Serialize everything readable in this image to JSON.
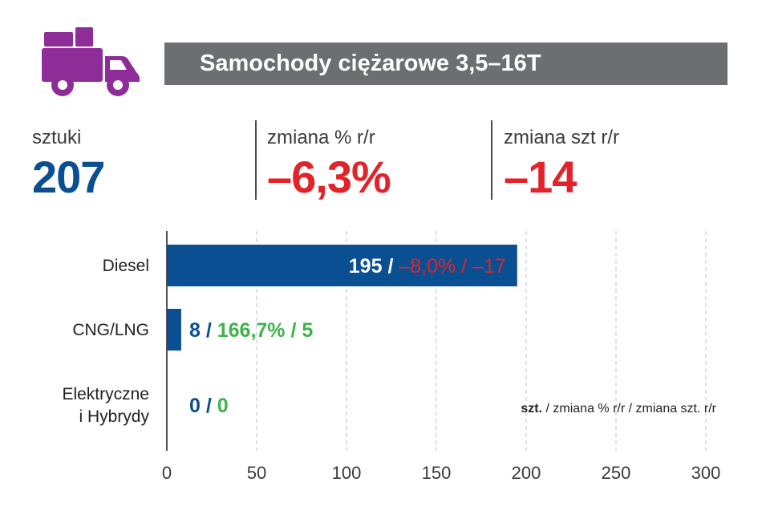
{
  "header": {
    "title": "Samochody ciężarowe 3,5–16T",
    "icon": "truck-icon",
    "icon_color": "#8e2d97"
  },
  "stats": [
    {
      "label": "sztuki",
      "value": "207",
      "color": "#0a4f92"
    },
    {
      "label": "zmiana % r/r",
      "value": "–6,3%",
      "color": "#e2232a"
    },
    {
      "label": "zmiana szt r/r",
      "value": "–14",
      "color": "#e2232a"
    }
  ],
  "chart_data": {
    "type": "bar",
    "orientation": "horizontal",
    "categories": [
      "Diesel",
      "CNG/LNG",
      "Elektryczne i Hybrydy"
    ],
    "category_lines": [
      [
        "Diesel"
      ],
      [
        "CNG/LNG"
      ],
      [
        "Elektryczne",
        "i Hybrydy"
      ]
    ],
    "values": [
      195,
      8,
      0
    ],
    "xlim": [
      0,
      300
    ],
    "x_ticks": [
      "0",
      "50",
      "100",
      "150",
      "200",
      "250",
      "300"
    ],
    "grid": true,
    "bar_color": "#0a4f92",
    "bar_labels": [
      {
        "value": "195",
        "sep": " / ",
        "pct": "–8,0%",
        "sep2": " / ",
        "diff": "–17",
        "value_color": "#ffffff",
        "change_color": "#e2232a"
      },
      {
        "value": "8",
        "sep": " / ",
        "pct": "166,7%",
        "sep2": " / ",
        "diff": "5",
        "value_color": "#0a4f92",
        "change_color": "#3db54a"
      },
      {
        "value": "0",
        "sep": " / ",
        "pct": "",
        "sep2": " / ",
        "diff": "0",
        "value_color": "#0a4f92",
        "change_color": "#3db54a"
      }
    ],
    "legend_note": {
      "bold": "szt.",
      "rest": " / zmiana % r/r / zmiana szt. r/r"
    }
  }
}
